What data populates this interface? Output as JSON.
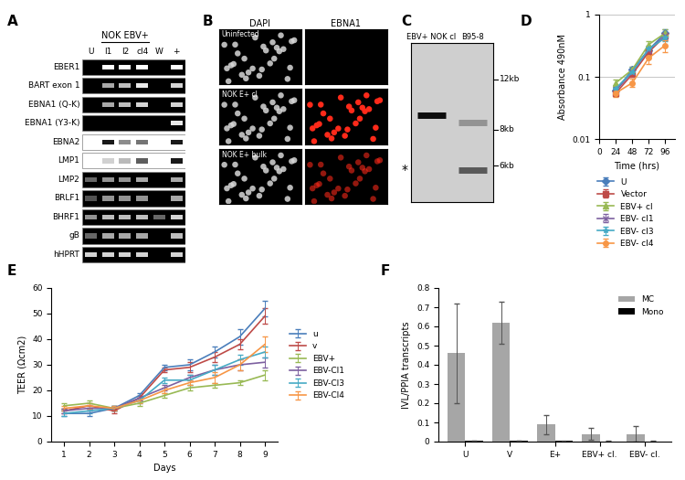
{
  "chart_data": [
    {
      "panel": "D",
      "type": "line",
      "x": [
        24,
        48,
        72,
        96
      ],
      "xlabel": "Time (hrs)",
      "ylabel": "Absorbance 490nM",
      "xlim": [
        0,
        110
      ],
      "xticks": [
        0,
        24,
        48,
        72,
        96
      ],
      "ylim": [
        0.01,
        1
      ],
      "yticks": [
        0.01,
        0.1,
        1
      ],
      "log": "y",
      "grid": "y",
      "legend": "below",
      "series": [
        {
          "name": "U",
          "color": "#4a7ebb",
          "marker": "diamond",
          "line_style": "solid",
          "values": [
            0.06,
            0.13,
            0.27,
            0.5
          ],
          "errors": [
            0.008,
            0.015,
            0.03,
            0.08
          ]
        },
        {
          "name": "Vector",
          "color": "#be4b48",
          "marker": "square",
          "line_style": "solid",
          "values": [
            0.055,
            0.11,
            0.25,
            0.45
          ],
          "errors": [
            0.006,
            0.01,
            0.03,
            0.06
          ]
        },
        {
          "name": "EBV+ cl",
          "color": "#98b954",
          "marker": "triangle",
          "line_style": "solid",
          "values": [
            0.08,
            0.13,
            0.33,
            0.5
          ],
          "errors": [
            0.01,
            0.015,
            0.04,
            0.08
          ]
        },
        {
          "name": "EBV- cl1",
          "color": "#7d60a0",
          "marker": "x",
          "line_style": "solid",
          "values": [
            0.06,
            0.12,
            0.27,
            0.45
          ],
          "errors": [
            0.008,
            0.012,
            0.03,
            0.05
          ]
        },
        {
          "name": "EBV- cl3",
          "color": "#46aac5",
          "marker": "star",
          "line_style": "solid",
          "values": [
            0.065,
            0.12,
            0.28,
            0.42
          ],
          "errors": [
            0.01,
            0.015,
            0.03,
            0.05
          ]
        },
        {
          "name": "EBV- cl4",
          "color": "#f79646",
          "marker": "circle",
          "line_style": "solid",
          "values": [
            0.055,
            0.08,
            0.2,
            0.32
          ],
          "errors": [
            0.008,
            0.012,
            0.04,
            0.07
          ]
        }
      ]
    },
    {
      "panel": "E",
      "type": "line",
      "x": [
        1,
        2,
        3,
        4,
        5,
        6,
        7,
        8,
        9
      ],
      "xlabel": "Days",
      "ylabel": "TEER (Ωcm2)",
      "xlim": [
        0.5,
        9.5
      ],
      "xticks": [
        1,
        2,
        3,
        4,
        5,
        6,
        7,
        8,
        9
      ],
      "ylim": [
        0,
        60
      ],
      "yticks": [
        0,
        10,
        20,
        30,
        40,
        50,
        60
      ],
      "legend": "right",
      "series": [
        {
          "name": "u",
          "color": "#4a7ebb",
          "line_style": "solid",
          "values": [
            11,
            11,
            13,
            18,
            29,
            30,
            35,
            41,
            52
          ],
          "errors": [
            1,
            1,
            1,
            1,
            1,
            2,
            2,
            3,
            3
          ]
        },
        {
          "name": "v",
          "color": "#be4b48",
          "line_style": "solid",
          "values": [
            12,
            14,
            12,
            17,
            28,
            29,
            33,
            38,
            49
          ],
          "errors": [
            1,
            1,
            1,
            1,
            1,
            2,
            2,
            2,
            3
          ]
        },
        {
          "name": "EBV+",
          "color": "#98b954",
          "line_style": "solid",
          "values": [
            14,
            15,
            13,
            15,
            18,
            21,
            22,
            23,
            26
          ],
          "errors": [
            1,
            1,
            1,
            1,
            1,
            1,
            1,
            1,
            2
          ]
        },
        {
          "name": "EBV-Cl1",
          "color": "#7d60a0",
          "line_style": "solid",
          "values": [
            12,
            13,
            13,
            17,
            21,
            25,
            28,
            30,
            31
          ],
          "errors": [
            1,
            1,
            1,
            1,
            1,
            1,
            2,
            2,
            2
          ]
        },
        {
          "name": "EBV-Cl3",
          "color": "#46aac5",
          "line_style": "solid",
          "values": [
            11,
            12,
            13,
            16,
            24,
            24,
            28,
            32,
            35
          ],
          "errors": [
            1,
            1,
            1,
            1,
            1,
            2,
            2,
            2,
            2
          ]
        },
        {
          "name": "EBV-Cl4",
          "color": "#f79646",
          "line_style": "solid",
          "values": [
            13,
            14,
            13,
            16,
            20,
            23,
            25,
            30,
            38
          ],
          "errors": [
            1,
            1,
            1,
            1,
            1,
            1,
            2,
            2,
            3
          ]
        }
      ]
    },
    {
      "panel": "F",
      "type": "bar",
      "categories": [
        "U",
        "V",
        "E+",
        "EBV+ cl.",
        "EBV- cl."
      ],
      "ylabel": "IVL/PPIA transcripts",
      "ylim": [
        0,
        0.8
      ],
      "yticks": [
        0,
        0.1,
        0.2,
        0.3,
        0.4,
        0.5,
        0.6,
        0.7,
        0.8
      ],
      "legend": "upper right",
      "series": [
        {
          "name": "MC",
          "color": "#a6a6a6",
          "values": [
            0.46,
            0.62,
            0.09,
            0.04,
            0.04
          ],
          "errors": [
            0.26,
            0.11,
            0.05,
            0.03,
            0.04
          ]
        },
        {
          "name": "Mono",
          "color": "#000000",
          "values": [
            0.005,
            0.005,
            0.003,
            0.002,
            0.002
          ],
          "errors": [
            0.002,
            0.002,
            0.001,
            0.001,
            0.001
          ]
        }
      ]
    }
  ],
  "gel": {
    "panel": "A",
    "header": {
      "text": "NOK EBV+",
      "lanes": [
        "I1",
        "I2",
        "cl4"
      ]
    },
    "lanes": [
      "U",
      "I1",
      "I2",
      "cl4",
      "W",
      "+"
    ],
    "rows": [
      {
        "label": "EBER1",
        "bands": [
          0,
          1,
          1,
          1,
          0,
          1
        ]
      },
      {
        "label": "BART exon 1",
        "bands": [
          0,
          0.6,
          0.7,
          0.9,
          0,
          0.8
        ]
      },
      {
        "label": "EBNA1 (Q-K)",
        "bands": [
          0,
          0.6,
          0.7,
          0.8,
          0,
          0.8
        ]
      },
      {
        "label": "EBNA1 (Y3-K)",
        "bands": [
          0,
          0,
          0,
          0,
          0,
          0.9
        ]
      },
      {
        "label": "EBNA2",
        "bands": [
          0,
          1,
          0.5,
          0.6,
          0,
          1
        ],
        "inverted": true
      },
      {
        "label": "LMP1",
        "bands": [
          0,
          0.2,
          0.3,
          0.7,
          0,
          1
        ],
        "inverted": true
      },
      {
        "label": "LMP2",
        "bands": [
          0.3,
          0.5,
          0.5,
          0.6,
          0,
          0.6
        ]
      },
      {
        "label": "BRLF1",
        "bands": [
          0.2,
          0.5,
          0.5,
          0.5,
          0,
          0.6
        ]
      },
      {
        "label": "BHRF1",
        "bands": [
          0.5,
          0.7,
          0.7,
          0.7,
          0.3,
          0.8
        ]
      },
      {
        "label": "gB",
        "bands": [
          0.3,
          0.6,
          0.6,
          0.6,
          0,
          0.7
        ]
      },
      {
        "label": "hHPRT",
        "bands": [
          0.8,
          0.8,
          0.8,
          0.8,
          0,
          0.8
        ]
      }
    ]
  },
  "microscopy": {
    "panel": "B",
    "columns": [
      "DAPI",
      "EBNA1"
    ],
    "rows": [
      {
        "label": "Uninfected",
        "ebna1_signal": 0
      },
      {
        "label": "NOK E+ cl",
        "ebna1_signal": 1
      },
      {
        "label": "NOK E+ bulk",
        "ebna1_signal": 0.4
      }
    ]
  },
  "blot": {
    "panel": "C",
    "lanes": [
      "EBV+ NOK cl",
      "B95-8"
    ],
    "ylim": [
      4.5,
      16
    ],
    "markers": [
      {
        "kb": 12,
        "label": "12kb"
      },
      {
        "kb": 8,
        "label": "8kb"
      },
      {
        "kb": 6,
        "label": "6kb"
      }
    ],
    "bands": [
      {
        "lane": 0,
        "kb": 9,
        "intensity": 1
      },
      {
        "lane": 1,
        "kb": 8.5,
        "intensity": 0.3
      },
      {
        "lane": 1,
        "kb": 5.8,
        "intensity": 0.6
      }
    ],
    "asterisk": {
      "text": "*",
      "kb": 5.8
    }
  }
}
